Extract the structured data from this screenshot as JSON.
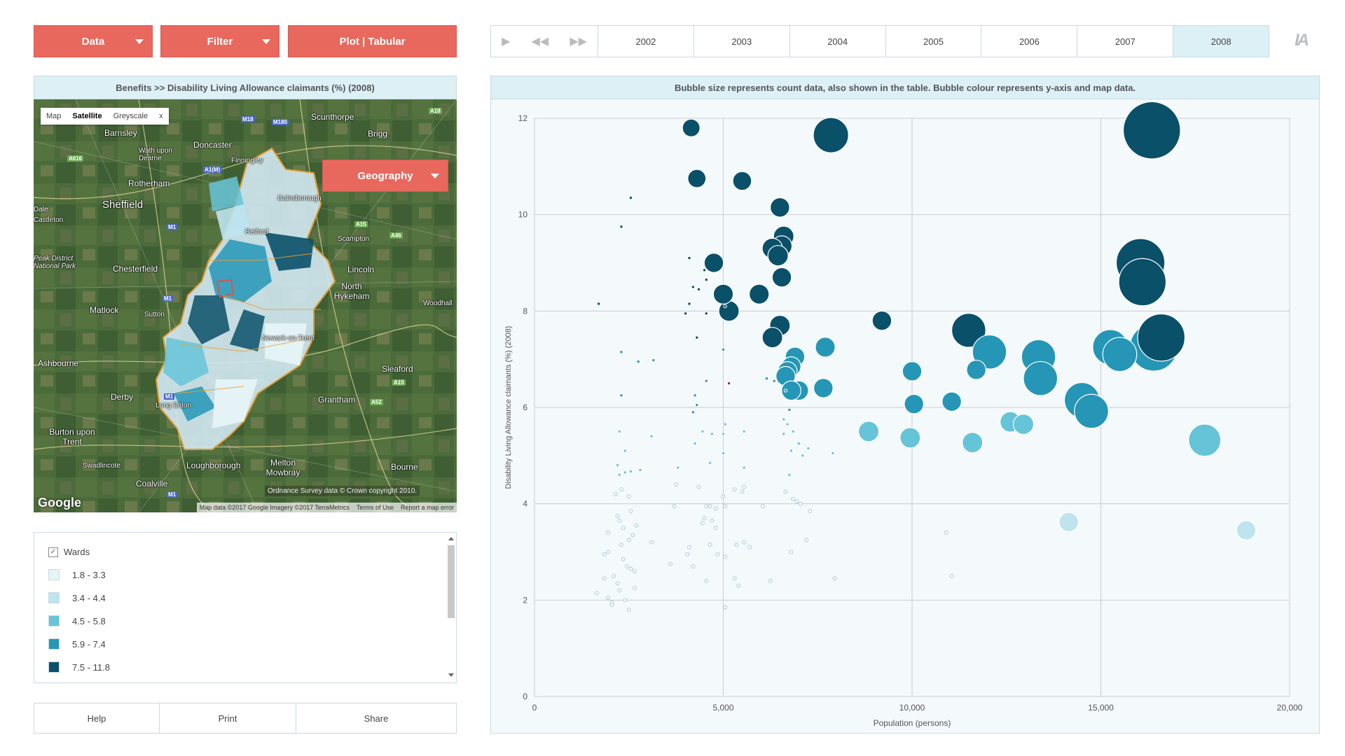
{
  "toolbar": {
    "data_label": "Data",
    "filter_label": "Filter",
    "plot_label": "Plot | Tabular"
  },
  "timeline": {
    "years": [
      "2002",
      "2003",
      "2004",
      "2005",
      "2006",
      "2007",
      "2008"
    ],
    "active_year": "2008",
    "controls": [
      "play-icon",
      "rewind-icon",
      "fast-forward-icon"
    ]
  },
  "logo_text": "IA",
  "map_panel": {
    "header": "Benefits >>  Disability Living Allowance claimants (%) (2008)",
    "map_types": [
      "Map",
      "Satellite",
      "Greyscale",
      "x"
    ],
    "active_map_type": "Satellite",
    "geography_label": "Geography",
    "google_label": "Google",
    "os_attribution": "Ordnance Survey data © Crown copyright 2010.",
    "attribution": [
      "Map data ©2017 Google Imagery ©2017 TerraMetrics",
      "Terms of Use",
      "Report a map error"
    ],
    "places": [
      {
        "name": "Scunthorpe",
        "size": "normal"
      },
      {
        "name": "Barnsley",
        "size": "normal"
      },
      {
        "name": "Brigg",
        "size": "normal"
      },
      {
        "name": "Doncaster",
        "size": "normal"
      },
      {
        "name": "Wath upon Dearne",
        "size": "small"
      },
      {
        "name": "Finningley",
        "size": "normal"
      },
      {
        "name": "Rotherham",
        "size": "normal"
      },
      {
        "name": "Sheffield",
        "size": "big"
      },
      {
        "name": "Gainsborough",
        "size": "normal"
      },
      {
        "name": "Dale",
        "size": "normal"
      },
      {
        "name": "Castleton",
        "size": "normal"
      },
      {
        "name": "Retford",
        "size": "normal"
      },
      {
        "name": "Scampton",
        "size": "normal"
      },
      {
        "name": "Peak District National Park",
        "size": "small"
      },
      {
        "name": "Chesterfield",
        "size": "normal"
      },
      {
        "name": "Lincoln",
        "size": "normal"
      },
      {
        "name": "North Hykeham",
        "size": "normal"
      },
      {
        "name": "Matlock",
        "size": "normal"
      },
      {
        "name": "Woodhall",
        "size": "normal"
      },
      {
        "name": "Sutton",
        "size": "normal"
      },
      {
        "name": "Newark-on-Trent",
        "size": "normal"
      },
      {
        "name": "Ashbourne",
        "size": "normal"
      },
      {
        "name": "Sleaford",
        "size": "normal"
      },
      {
        "name": "Derby",
        "size": "normal"
      },
      {
        "name": "Long Eaton",
        "size": "normal"
      },
      {
        "name": "Grantham",
        "size": "normal"
      },
      {
        "name": "Burton upon Trent",
        "size": "normal"
      },
      {
        "name": "Swadlincote",
        "size": "normal"
      },
      {
        "name": "Loughborough",
        "size": "normal"
      },
      {
        "name": "Melton Mowbray",
        "size": "normal"
      },
      {
        "name": "Bourne",
        "size": "normal"
      },
      {
        "name": "Coalville",
        "size": "normal"
      }
    ]
  },
  "legend": {
    "layer_label": "Wards",
    "layer_checked": true,
    "classes": [
      {
        "label": "1.8 - 3.3",
        "color": "#e8f5f8"
      },
      {
        "label": "3.4 - 4.4",
        "color": "#bde4ef"
      },
      {
        "label": "4.5 - 5.8",
        "color": "#66c4d8"
      },
      {
        "label": "5.9 - 7.4",
        "color": "#2596b6"
      },
      {
        "label": "7.5 - 11.8",
        "color": "#0a5069"
      }
    ]
  },
  "bottom_buttons": {
    "help_label": "Help",
    "print_label": "Print",
    "share_label": "Share"
  },
  "chart_panel": {
    "header": "Bubble size represents count data, also shown in the table. Bubble colour represents y-axis and map data."
  },
  "chart_data": {
    "type": "scatter",
    "xlabel": "Population (persons)",
    "ylabel": "Disability Living Allowance claimants (%) (2008)",
    "xlim": [
      0,
      20000
    ],
    "ylim": [
      0,
      12
    ],
    "x_ticks": [
      "0",
      "5,000",
      "10,000",
      "15,000",
      "20,000"
    ],
    "y_ticks": [
      "0",
      "2",
      "4",
      "6",
      "8",
      "10",
      "12"
    ],
    "grid": true,
    "highlighted_color": "#8b3a36",
    "points": [
      {
        "x": 16350,
        "y": 11.75,
        "s": 790
      },
      {
        "x": 7850,
        "y": 11.65,
        "s": 300
      },
      {
        "x": 4150,
        "y": 11.8,
        "s": 75
      },
      {
        "x": 4300,
        "y": 10.75,
        "s": 80
      },
      {
        "x": 5500,
        "y": 10.7,
        "s": 85
      },
      {
        "x": 6500,
        "y": 10.15,
        "s": 90
      },
      {
        "x": 2550,
        "y": 10.35,
        "s": 8
      },
      {
        "x": 2300,
        "y": 9.75,
        "s": 8
      },
      {
        "x": 6600,
        "y": 9.55,
        "s": 100
      },
      {
        "x": 6550,
        "y": 9.35,
        "s": 100
      },
      {
        "x": 6300,
        "y": 9.3,
        "s": 100
      },
      {
        "x": 6450,
        "y": 9.15,
        "s": 100
      },
      {
        "x": 16050,
        "y": 9.0,
        "s": 570
      },
      {
        "x": 16100,
        "y": 8.6,
        "s": 540
      },
      {
        "x": 4750,
        "y": 9.0,
        "s": 90
      },
      {
        "x": 4100,
        "y": 9.1,
        "s": 8
      },
      {
        "x": 4500,
        "y": 8.85,
        "s": 8
      },
      {
        "x": 6550,
        "y": 8.7,
        "s": 90
      },
      {
        "x": 4550,
        "y": 8.65,
        "s": 8
      },
      {
        "x": 4200,
        "y": 8.5,
        "s": 8
      },
      {
        "x": 4350,
        "y": 8.45,
        "s": 8
      },
      {
        "x": 5000,
        "y": 8.35,
        "s": 95
      },
      {
        "x": 5950,
        "y": 8.35,
        "s": 95
      },
      {
        "x": 1700,
        "y": 8.15,
        "s": 10
      },
      {
        "x": 4100,
        "y": 8.15,
        "s": 8
      },
      {
        "x": 4550,
        "y": 7.95,
        "s": 8
      },
      {
        "x": 4000,
        "y": 7.95,
        "s": 8
      },
      {
        "x": 5150,
        "y": 8.0,
        "s": 100
      },
      {
        "x": 5050,
        "y": 8.1,
        "s": 10
      },
      {
        "x": 9200,
        "y": 7.8,
        "s": 90
      },
      {
        "x": 11500,
        "y": 7.6,
        "s": 280
      },
      {
        "x": 16600,
        "y": 7.45,
        "s": 540
      },
      {
        "x": 6500,
        "y": 7.7,
        "s": 100
      },
      {
        "x": 6300,
        "y": 7.45,
        "s": 100
      },
      {
        "x": 4300,
        "y": 7.45,
        "s": 8
      },
      {
        "x": 2300,
        "y": 7.15,
        "s": 8
      },
      {
        "x": 5000,
        "y": 7.2,
        "s": 8
      },
      {
        "x": 2750,
        "y": 6.95,
        "s": 8
      },
      {
        "x": 3150,
        "y": 6.98,
        "s": 8
      },
      {
        "x": 7700,
        "y": 7.25,
        "s": 95
      },
      {
        "x": 15250,
        "y": 7.25,
        "s": 300
      },
      {
        "x": 16400,
        "y": 7.25,
        "s": 550
      },
      {
        "x": 12050,
        "y": 7.15,
        "s": 280
      },
      {
        "x": 15500,
        "y": 7.1,
        "s": 280
      },
      {
        "x": 13350,
        "y": 7.05,
        "s": 280
      },
      {
        "x": 6900,
        "y": 7.05,
        "s": 90
      },
      {
        "x": 6800,
        "y": 6.85,
        "s": 90
      },
      {
        "x": 6700,
        "y": 6.75,
        "s": 90
      },
      {
        "x": 10000,
        "y": 6.75,
        "s": 90
      },
      {
        "x": 11700,
        "y": 6.78,
        "s": 90
      },
      {
        "x": 6650,
        "y": 6.65,
        "s": 90
      },
      {
        "x": 13400,
        "y": 6.6,
        "s": 280
      },
      {
        "x": 5150,
        "y": 6.5,
        "s": 12,
        "highlight": true
      },
      {
        "x": 4550,
        "y": 6.55,
        "s": 8
      },
      {
        "x": 6150,
        "y": 6.6,
        "s": 8
      },
      {
        "x": 6350,
        "y": 6.55,
        "s": 8
      },
      {
        "x": 7650,
        "y": 6.4,
        "s": 90
      },
      {
        "x": 7000,
        "y": 6.35,
        "s": 90
      },
      {
        "x": 6800,
        "y": 6.35,
        "s": 90
      },
      {
        "x": 6650,
        "y": 6.35,
        "s": 8
      },
      {
        "x": 2300,
        "y": 6.25,
        "s": 8
      },
      {
        "x": 4250,
        "y": 6.25,
        "s": 8
      },
      {
        "x": 14500,
        "y": 6.15,
        "s": 300
      },
      {
        "x": 11050,
        "y": 6.12,
        "s": 90
      },
      {
        "x": 10050,
        "y": 6.07,
        "s": 90
      },
      {
        "x": 4300,
        "y": 6.05,
        "s": 8
      },
      {
        "x": 14750,
        "y": 5.92,
        "s": 280
      },
      {
        "x": 6750,
        "y": 5.95,
        "s": 8
      },
      {
        "x": 4200,
        "y": 5.9,
        "s": 8
      },
      {
        "x": 6600,
        "y": 5.75,
        "s": 8
      },
      {
        "x": 12600,
        "y": 5.7,
        "s": 100
      },
      {
        "x": 12950,
        "y": 5.65,
        "s": 100
      },
      {
        "x": 5050,
        "y": 5.65,
        "s": 8
      },
      {
        "x": 6700,
        "y": 5.65,
        "s": 8
      },
      {
        "x": 8850,
        "y": 5.5,
        "s": 100
      },
      {
        "x": 2250,
        "y": 5.5,
        "s": 8
      },
      {
        "x": 5550,
        "y": 5.5,
        "s": 8
      },
      {
        "x": 4450,
        "y": 5.5,
        "s": 8
      },
      {
        "x": 6850,
        "y": 5.5,
        "s": 8
      },
      {
        "x": 6600,
        "y": 5.45,
        "s": 8
      },
      {
        "x": 4700,
        "y": 5.45,
        "s": 8
      },
      {
        "x": 5000,
        "y": 5.45,
        "s": 8
      },
      {
        "x": 3100,
        "y": 5.4,
        "s": 8
      },
      {
        "x": 9950,
        "y": 5.37,
        "s": 100
      },
      {
        "x": 17750,
        "y": 5.32,
        "s": 250
      },
      {
        "x": 11600,
        "y": 5.27,
        "s": 100
      },
      {
        "x": 4250,
        "y": 5.25,
        "s": 8
      },
      {
        "x": 7000,
        "y": 5.25,
        "s": 8
      },
      {
        "x": 7250,
        "y": 5.15,
        "s": 8
      },
      {
        "x": 2400,
        "y": 5.1,
        "s": 8
      },
      {
        "x": 6800,
        "y": 5.1,
        "s": 8
      },
      {
        "x": 7900,
        "y": 5.05,
        "s": 8
      },
      {
        "x": 5000,
        "y": 5.05,
        "s": 8
      },
      {
        "x": 7100,
        "y": 5.0,
        "s": 8
      },
      {
        "x": 4650,
        "y": 4.85,
        "s": 8
      },
      {
        "x": 2200,
        "y": 4.8,
        "s": 8
      },
      {
        "x": 5550,
        "y": 4.75,
        "s": 8
      },
      {
        "x": 3800,
        "y": 4.75,
        "s": 8
      },
      {
        "x": 2800,
        "y": 4.7,
        "s": 8
      },
      {
        "x": 2550,
        "y": 4.67,
        "s": 8
      },
      {
        "x": 2250,
        "y": 4.6,
        "s": 8
      },
      {
        "x": 2400,
        "y": 4.65,
        "s": 8
      },
      {
        "x": 6750,
        "y": 4.6,
        "s": 8
      },
      {
        "x": 3750,
        "y": 4.4,
        "s": 8
      },
      {
        "x": 4350,
        "y": 4.35,
        "s": 8
      },
      {
        "x": 5550,
        "y": 4.35,
        "s": 8
      },
      {
        "x": 2300,
        "y": 4.3,
        "s": 8
      },
      {
        "x": 5300,
        "y": 4.3,
        "s": 8
      },
      {
        "x": 5500,
        "y": 4.25,
        "s": 8
      },
      {
        "x": 6650,
        "y": 4.25,
        "s": 8
      },
      {
        "x": 2150,
        "y": 4.2,
        "s": 8
      },
      {
        "x": 5000,
        "y": 4.15,
        "s": 8
      },
      {
        "x": 6850,
        "y": 4.1,
        "s": 8
      },
      {
        "x": 2500,
        "y": 4.15,
        "s": 8
      },
      {
        "x": 6950,
        "y": 4.05,
        "s": 8
      },
      {
        "x": 7050,
        "y": 4.0,
        "s": 8
      },
      {
        "x": 3700,
        "y": 3.95,
        "s": 8
      },
      {
        "x": 4650,
        "y": 3.95,
        "s": 8
      },
      {
        "x": 4550,
        "y": 3.95,
        "s": 8
      },
      {
        "x": 5050,
        "y": 3.95,
        "s": 8
      },
      {
        "x": 6050,
        "y": 3.95,
        "s": 8
      },
      {
        "x": 4800,
        "y": 3.9,
        "s": 8
      },
      {
        "x": 2550,
        "y": 3.85,
        "s": 8
      },
      {
        "x": 7300,
        "y": 3.85,
        "s": 8
      },
      {
        "x": 2200,
        "y": 3.75,
        "s": 8
      },
      {
        "x": 4500,
        "y": 3.7,
        "s": 8
      },
      {
        "x": 4700,
        "y": 3.65,
        "s": 8
      },
      {
        "x": 2250,
        "y": 3.65,
        "s": 8
      },
      {
        "x": 4450,
        "y": 3.6,
        "s": 8
      },
      {
        "x": 2700,
        "y": 3.55,
        "s": 8
      },
      {
        "x": 2350,
        "y": 3.5,
        "s": 8
      },
      {
        "x": 4800,
        "y": 3.5,
        "s": 8
      },
      {
        "x": 14150,
        "y": 3.62,
        "s": 90
      },
      {
        "x": 18850,
        "y": 3.45,
        "s": 90
      },
      {
        "x": 1950,
        "y": 3.4,
        "s": 8
      },
      {
        "x": 2600,
        "y": 3.35,
        "s": 8
      },
      {
        "x": 10900,
        "y": 3.4,
        "s": 8
      },
      {
        "x": 2500,
        "y": 3.25,
        "s": 8
      },
      {
        "x": 7200,
        "y": 3.25,
        "s": 8
      },
      {
        "x": 3100,
        "y": 3.2,
        "s": 8
      },
      {
        "x": 5550,
        "y": 3.2,
        "s": 8
      },
      {
        "x": 2300,
        "y": 3.15,
        "s": 8
      },
      {
        "x": 4650,
        "y": 3.15,
        "s": 8
      },
      {
        "x": 5350,
        "y": 3.15,
        "s": 8
      },
      {
        "x": 5700,
        "y": 3.1,
        "s": 8
      },
      {
        "x": 4100,
        "y": 3.1,
        "s": 8
      },
      {
        "x": 1950,
        "y": 3.0,
        "s": 8
      },
      {
        "x": 6800,
        "y": 3.0,
        "s": 8
      },
      {
        "x": 4850,
        "y": 2.95,
        "s": 8
      },
      {
        "x": 1850,
        "y": 2.95,
        "s": 8
      },
      {
        "x": 4050,
        "y": 2.95,
        "s": 8
      },
      {
        "x": 5050,
        "y": 2.9,
        "s": 8
      },
      {
        "x": 2350,
        "y": 2.85,
        "s": 8
      },
      {
        "x": 3600,
        "y": 2.75,
        "s": 8
      },
      {
        "x": 4200,
        "y": 2.7,
        "s": 8
      },
      {
        "x": 2450,
        "y": 2.7,
        "s": 8
      },
      {
        "x": 2550,
        "y": 2.65,
        "s": 8
      },
      {
        "x": 2650,
        "y": 2.6,
        "s": 8
      },
      {
        "x": 2100,
        "y": 2.5,
        "s": 8
      },
      {
        "x": 1850,
        "y": 2.45,
        "s": 8
      },
      {
        "x": 5300,
        "y": 2.45,
        "s": 8
      },
      {
        "x": 7950,
        "y": 2.45,
        "s": 8
      },
      {
        "x": 11050,
        "y": 2.5,
        "s": 8
      },
      {
        "x": 4550,
        "y": 2.4,
        "s": 8
      },
      {
        "x": 6250,
        "y": 2.4,
        "s": 8
      },
      {
        "x": 2200,
        "y": 2.35,
        "s": 8
      },
      {
        "x": 5400,
        "y": 2.3,
        "s": 8
      },
      {
        "x": 2650,
        "y": 2.25,
        "s": 8
      },
      {
        "x": 2250,
        "y": 2.2,
        "s": 8
      },
      {
        "x": 1650,
        "y": 2.15,
        "s": 8
      },
      {
        "x": 1950,
        "y": 2.05,
        "s": 8
      },
      {
        "x": 2400,
        "y": 2.0,
        "s": 8
      },
      {
        "x": 2050,
        "y": 1.95,
        "s": 8
      },
      {
        "x": 2050,
        "y": 1.9,
        "s": 8
      },
      {
        "x": 5050,
        "y": 1.85,
        "s": 8
      },
      {
        "x": 2500,
        "y": 1.8,
        "s": 8
      }
    ]
  }
}
